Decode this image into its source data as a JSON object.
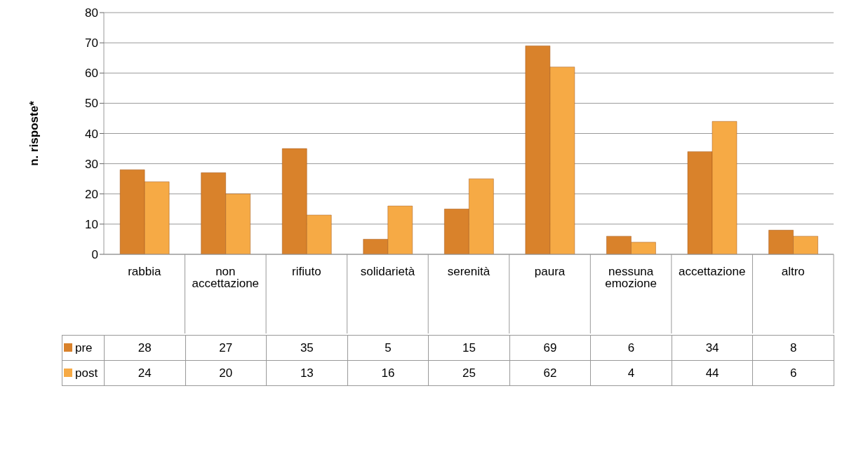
{
  "chart_data": {
    "type": "bar",
    "ylabel": "n. risposte*",
    "categories": [
      "rabbia",
      "non accettazione",
      "rifiuto",
      "solidarietà",
      "serenità",
      "paura",
      "nessuna emozione",
      "accettazione",
      "altro"
    ],
    "series": [
      {
        "name": "pre",
        "color": "#d9822b",
        "values": [
          28,
          27,
          35,
          5,
          15,
          69,
          6,
          34,
          8
        ]
      },
      {
        "name": "post",
        "color": "#f6aa45",
        "values": [
          24,
          20,
          13,
          16,
          25,
          62,
          4,
          44,
          6
        ]
      }
    ],
    "ylim": [
      0,
      80
    ],
    "yticks": [
      0,
      10,
      20,
      30,
      40,
      50,
      60,
      70,
      80
    ],
    "grid": "y",
    "legend": "bottom left",
    "data_labels": true
  }
}
